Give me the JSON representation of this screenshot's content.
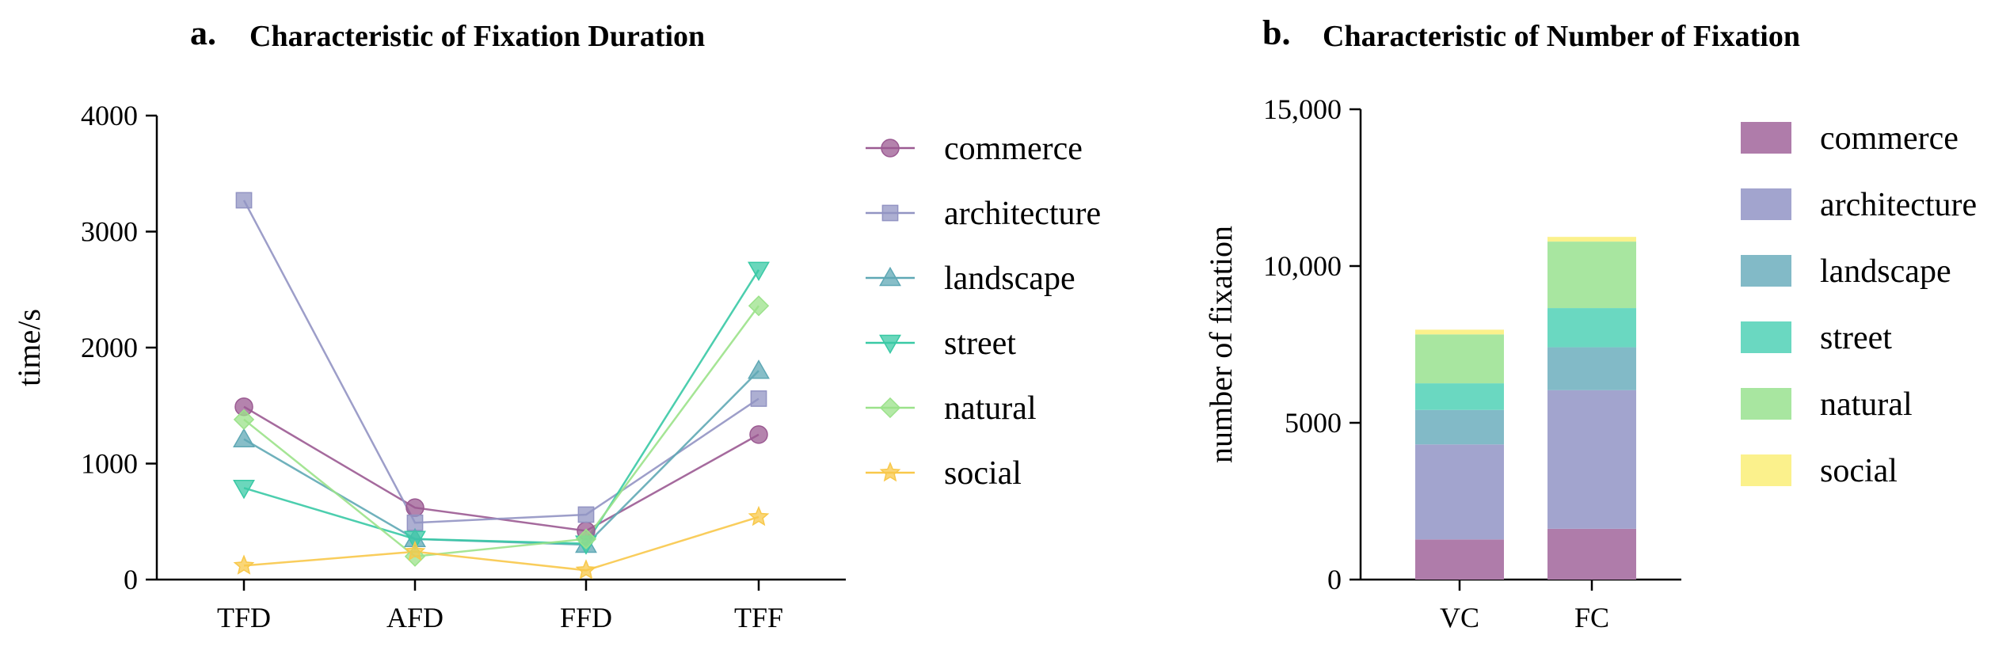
{
  "chart_data": [
    {
      "type": "line",
      "panel_letter": "a.",
      "title": "Characteristic of Fixation Duration",
      "xlabel": "",
      "ylabel": "time/s",
      "categories": [
        "TFD",
        "AFD",
        "FFD",
        "TFF"
      ],
      "ylim": [
        0,
        4000
      ],
      "yticks": [
        "0",
        "1000",
        "2000",
        "3000",
        "4000"
      ],
      "ytick_values": [
        0,
        1000,
        2000,
        3000,
        4000
      ],
      "legend_position": "right",
      "series": [
        {
          "name": "commerce",
          "marker": "circle",
          "color": "#9B5A92",
          "values": [
            1490,
            620,
            420,
            1250
          ]
        },
        {
          "name": "architecture",
          "marker": "square",
          "color": "#9294C3",
          "values": [
            3270,
            490,
            560,
            1560
          ]
        },
        {
          "name": "landscape",
          "marker": "triangle-up",
          "color": "#5FA8B5",
          "values": [
            1210,
            350,
            300,
            1800
          ]
        },
        {
          "name": "street",
          "marker": "triangle-down",
          "color": "#39C9A5",
          "values": [
            790,
            350,
            310,
            2670
          ]
        },
        {
          "name": "natural",
          "marker": "diamond",
          "color": "#9BE28A",
          "values": [
            1380,
            200,
            350,
            2360
          ]
        },
        {
          "name": "social",
          "marker": "star",
          "color": "#F8C84A",
          "values": [
            120,
            240,
            80,
            540
          ]
        }
      ]
    },
    {
      "type": "bar",
      "stacked": true,
      "panel_letter": "b.",
      "title": "Characteristic of Number of Fixation",
      "xlabel": "",
      "ylabel": "number of fixation",
      "categories": [
        "VC",
        "FC"
      ],
      "ylim": [
        0,
        15000
      ],
      "yticks": [
        "0",
        "5000",
        "10,000",
        "15,000"
      ],
      "ytick_values": [
        0,
        5000,
        10000,
        15000
      ],
      "legend_position": "right",
      "series": [
        {
          "name": "commerce",
          "color": "#AF7CAA",
          "values": [
            1280,
            1620
          ]
        },
        {
          "name": "architecture",
          "color": "#A2A4CE",
          "values": [
            3030,
            4420
          ]
        },
        {
          "name": "landscape",
          "color": "#82BAC7",
          "values": [
            1100,
            1370
          ]
        },
        {
          "name": "street",
          "color": "#6AD8C1",
          "values": [
            850,
            1250
          ]
        },
        {
          "name": "natural",
          "color": "#A8E6A0",
          "values": [
            1560,
            2120
          ]
        },
        {
          "name": "social",
          "color": "#FBF18C",
          "values": [
            150,
            150
          ]
        }
      ]
    }
  ]
}
